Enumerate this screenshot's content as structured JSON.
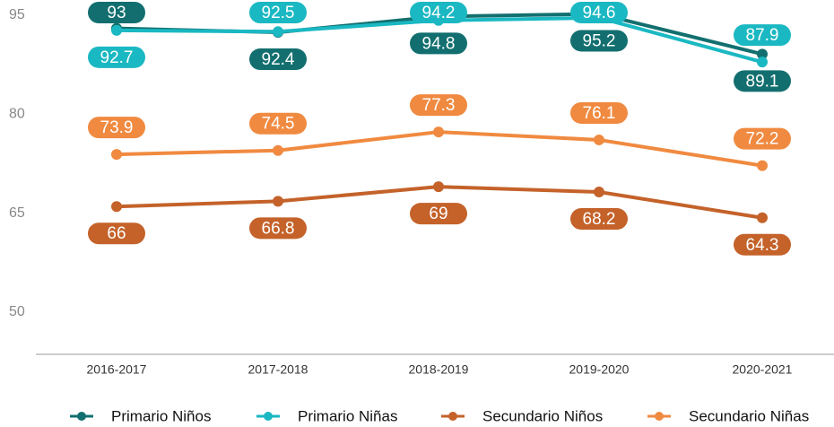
{
  "chart_data": {
    "type": "line",
    "categories": [
      "2016-2017",
      "2017-2018",
      "2018-2019",
      "2019-2020",
      "2020-2021"
    ],
    "series": [
      {
        "name": "Primario Niños",
        "color": "#136f6f",
        "values": [
          93.0,
          92.4,
          94.8,
          95.2,
          89.1
        ]
      },
      {
        "name": "Primario Niñas",
        "color": "#1ab8c2",
        "values": [
          92.7,
          92.5,
          94.2,
          94.6,
          87.9
        ]
      },
      {
        "name": "Secundario Niños",
        "color": "#c4622a",
        "values": [
          66.0,
          66.8,
          69.0,
          68.2,
          64.3
        ]
      },
      {
        "name": "Secundario Niñas",
        "color": "#f08a40",
        "values": [
          73.9,
          74.5,
          77.3,
          76.1,
          72.2
        ]
      }
    ],
    "ylim": [
      43.6,
      97.3
    ],
    "yticks": [
      50,
      65,
      80,
      95
    ],
    "grid": false,
    "legend": "bottom"
  }
}
